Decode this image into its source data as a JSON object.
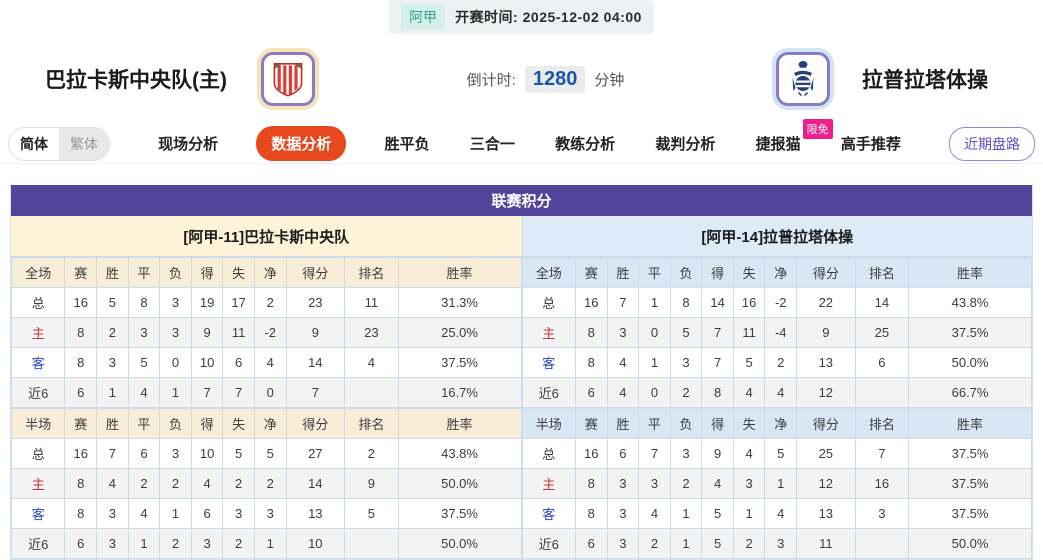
{
  "top_bar": {
    "league": "阿甲",
    "kickoff_label": "开赛时间:",
    "kickoff_time": "2025-12-02 04:00"
  },
  "header": {
    "home_team": "巴拉卡斯中央队(主)",
    "away_team": "拉普拉塔体操",
    "countdown_label": "倒计时:",
    "countdown_value": "1280",
    "countdown_unit": "分钟"
  },
  "nav": {
    "lang_simplified": "简体",
    "lang_traditional": "繁体",
    "tabs": [
      {
        "label": "现场分析",
        "active": false,
        "badge": ""
      },
      {
        "label": "数据分析",
        "active": true,
        "badge": ""
      },
      {
        "label": "胜平负",
        "active": false,
        "badge": ""
      },
      {
        "label": "三合一",
        "active": false,
        "badge": ""
      },
      {
        "label": "教练分析",
        "active": false,
        "badge": ""
      },
      {
        "label": "裁判分析",
        "active": false,
        "badge": ""
      },
      {
        "label": "捷报猫",
        "active": false,
        "badge": "限免"
      },
      {
        "label": "高手推荐",
        "active": false,
        "badge": ""
      }
    ],
    "recent_button": "近期盘路"
  },
  "colors": {
    "table_title_bg": "#54459c",
    "active_tab_bg": "#e8481e",
    "badge_bg": "#ef1d8d",
    "league_badge_bg": "#d5efe9",
    "league_badge_text": "#2fa393",
    "home_head_bg": "#fdf3d8",
    "away_head_bg": "#dcebf7",
    "countdown_text": "#1a56b0",
    "home_label_red": "#d03333",
    "away_label_blue": "#2848c8"
  },
  "league_table": {
    "title": "联赛积分",
    "left": {
      "team_header": "[阿甲-11]巴拉卡斯中央队",
      "full_time": {
        "columns": [
          "全场",
          "赛",
          "胜",
          "平",
          "负",
          "得",
          "失",
          "净",
          "得分",
          "排名",
          "胜率"
        ],
        "rows": [
          {
            "label": "总",
            "cells": [
              "16",
              "5",
              "8",
              "3",
              "19",
              "17",
              "2",
              "23",
              "11",
              "31.3%"
            ]
          },
          {
            "label": "主",
            "cells": [
              "8",
              "2",
              "3",
              "3",
              "9",
              "11",
              "-2",
              "9",
              "23",
              "25.0%"
            ]
          },
          {
            "label": "客",
            "cells": [
              "8",
              "3",
              "5",
              "0",
              "10",
              "6",
              "4",
              "14",
              "4",
              "37.5%"
            ]
          },
          {
            "label": "近6",
            "cells": [
              "6",
              "1",
              "4",
              "1",
              "7",
              "7",
              "0",
              "7",
              "",
              "16.7%"
            ]
          }
        ]
      },
      "half_time": {
        "columns": [
          "半场",
          "赛",
          "胜",
          "平",
          "负",
          "得",
          "失",
          "净",
          "得分",
          "排名",
          "胜率"
        ],
        "rows": [
          {
            "label": "总",
            "cells": [
              "16",
              "7",
              "6",
              "3",
              "10",
              "5",
              "5",
              "27",
              "2",
              "43.8%"
            ]
          },
          {
            "label": "主",
            "cells": [
              "8",
              "4",
              "2",
              "2",
              "4",
              "2",
              "2",
              "14",
              "9",
              "50.0%"
            ]
          },
          {
            "label": "客",
            "cells": [
              "8",
              "3",
              "4",
              "1",
              "6",
              "3",
              "3",
              "13",
              "5",
              "37.5%"
            ]
          },
          {
            "label": "近6",
            "cells": [
              "6",
              "3",
              "1",
              "2",
              "3",
              "2",
              "1",
              "10",
              "",
              "50.0%"
            ]
          }
        ]
      }
    },
    "right": {
      "team_header": "[阿甲-14]拉普拉塔体操",
      "full_time": {
        "columns": [
          "全场",
          "赛",
          "胜",
          "平",
          "负",
          "得",
          "失",
          "净",
          "得分",
          "排名",
          "胜率"
        ],
        "rows": [
          {
            "label": "总",
            "cells": [
              "16",
              "7",
              "1",
              "8",
              "14",
              "16",
              "-2",
              "22",
              "14",
              "43.8%"
            ]
          },
          {
            "label": "主",
            "cells": [
              "8",
              "3",
              "0",
              "5",
              "7",
              "11",
              "-4",
              "9",
              "25",
              "37.5%"
            ]
          },
          {
            "label": "客",
            "cells": [
              "8",
              "4",
              "1",
              "3",
              "7",
              "5",
              "2",
              "13",
              "6",
              "50.0%"
            ]
          },
          {
            "label": "近6",
            "cells": [
              "6",
              "4",
              "0",
              "2",
              "8",
              "4",
              "4",
              "12",
              "",
              "66.7%"
            ]
          }
        ]
      },
      "half_time": {
        "columns": [
          "半场",
          "赛",
          "胜",
          "平",
          "负",
          "得",
          "失",
          "净",
          "得分",
          "排名",
          "胜率"
        ],
        "rows": [
          {
            "label": "总",
            "cells": [
              "16",
              "6",
              "7",
              "3",
              "9",
              "4",
              "5",
              "25",
              "7",
              "37.5%"
            ]
          },
          {
            "label": "主",
            "cells": [
              "8",
              "3",
              "3",
              "2",
              "4",
              "3",
              "1",
              "12",
              "16",
              "37.5%"
            ]
          },
          {
            "label": "客",
            "cells": [
              "8",
              "3",
              "4",
              "1",
              "5",
              "1",
              "4",
              "13",
              "3",
              "37.5%"
            ]
          },
          {
            "label": "近6",
            "cells": [
              "6",
              "3",
              "2",
              "1",
              "5",
              "2",
              "3",
              "11",
              "",
              "50.0%"
            ]
          }
        ]
      }
    }
  }
}
